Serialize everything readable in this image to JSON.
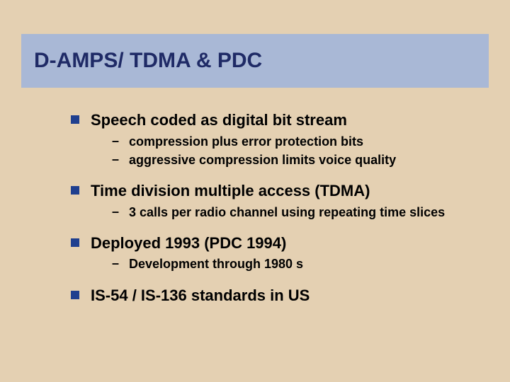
{
  "colors": {
    "background": "#e4d0b2",
    "title_band": "#a9b8d6",
    "title_text": "#1f2a66",
    "bullet_square": "#1f3f8f",
    "body_text": "#000000"
  },
  "typography": {
    "font_family": "Arial",
    "title_fontsize_pt": 30,
    "title_weight": "bold",
    "lvl1_fontsize_pt": 22,
    "lvl1_weight": "bold",
    "lvl2_fontsize_pt": 18,
    "lvl2_weight": "bold"
  },
  "title": "D-AMPS/ TDMA & PDC",
  "items": [
    {
      "text": "Speech coded as digital bit stream",
      "children": [
        "compression plus error protection bits",
        "aggressive compression limits voice quality"
      ]
    },
    {
      "text": "Time division multiple access (TDMA)",
      "children": [
        "3 calls per radio channel using repeating time slices"
      ]
    },
    {
      "text": "Deployed 1993 (PDC 1994)",
      "children": [
        "Development through 1980 s"
      ]
    },
    {
      "text": "IS-54 / IS-136 standards in US",
      "children": []
    }
  ]
}
